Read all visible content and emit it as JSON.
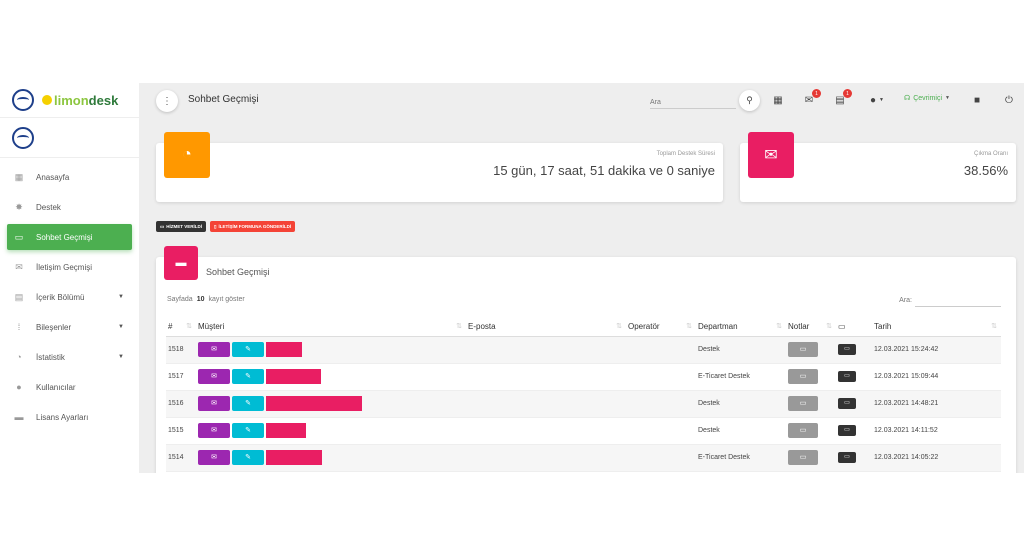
{
  "brand": {
    "part1": "limon",
    "part2": "desk"
  },
  "sidebar": {
    "items": [
      {
        "label": "Anasayfa",
        "icon": "dashboard-icon",
        "glyph": "▦"
      },
      {
        "label": "Destek",
        "icon": "support-icon",
        "glyph": "✸"
      },
      {
        "label": "Sohbet Geçmişi",
        "icon": "chat-icon",
        "glyph": "▭",
        "active": true
      },
      {
        "label": "İletişim Geçmişi",
        "icon": "mail-icon",
        "glyph": "✉"
      },
      {
        "label": "İçerik Bölümü",
        "icon": "content-icon",
        "glyph": "▤",
        "caret": true
      },
      {
        "label": "Bileşenler",
        "icon": "apps-icon",
        "glyph": "⁞"
      },
      {
        "label": "İstatistik",
        "icon": "pie-chart-icon",
        "glyph": "◔",
        "caret": true
      },
      {
        "label": "Kullanıcılar",
        "icon": "user-icon",
        "glyph": "●"
      },
      {
        "label": "Lisans Ayarları",
        "icon": "briefcase-icon",
        "glyph": "▬"
      }
    ]
  },
  "topbar": {
    "title": "Sohbet Geçmişi",
    "search_placeholder": "Ara",
    "notif_mail_count": "1",
    "notif_chat_count": "1",
    "status": "Çevrimiçi"
  },
  "stats": {
    "total_label": "Toplam Destek Süresi",
    "total_value": "15 gün, 17 saat, 51 dakika ve 0 saniye",
    "bounce_label": "Çıkma Oranı",
    "bounce_value": "38.56%"
  },
  "legend": {
    "served": "HİZMET VERİLDİ",
    "form": "İLETİŞİM FORMUNA GÖNDERİLDİ"
  },
  "table_card": {
    "title": "Sohbet Geçmişi",
    "length_prefix": "Sayfada",
    "length_value": "10",
    "length_suffix": "kayıt göster",
    "filter_label": "Ara:",
    "columns": [
      "#",
      "Müşteri",
      "E-posta",
      "Operatör",
      "Departman",
      "Notlar",
      "",
      "Tarih"
    ],
    "rows": [
      {
        "id": "1518",
        "department": "Destek",
        "date": "12.03.2021 15:24:42",
        "redact_w": 36
      },
      {
        "id": "1517",
        "department": "E-Ticaret Destek",
        "date": "12.03.2021 15:09:44",
        "redact_w": 55
      },
      {
        "id": "1516",
        "department": "Destek",
        "date": "12.03.2021 14:48:21",
        "redact_w": 96
      },
      {
        "id": "1515",
        "department": "Destek",
        "date": "12.03.2021 14:11:52",
        "redact_w": 40
      },
      {
        "id": "1514",
        "department": "E-Ticaret Destek",
        "date": "12.03.2021 14:05:22",
        "redact_w": 56
      }
    ]
  },
  "colors": {
    "active_green": "#4caf50",
    "orange": "#ff9800",
    "pink": "#e91e63",
    "purple": "#9c27b0",
    "cyan": "#00bcd4",
    "red": "#f44336",
    "dark": "#333333"
  }
}
